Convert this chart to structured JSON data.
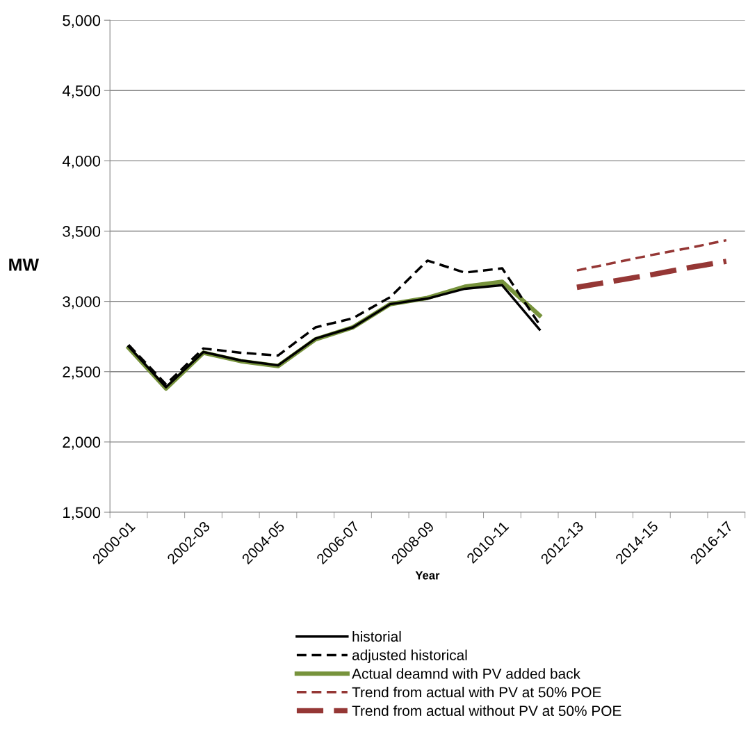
{
  "chart_data": {
    "type": "line",
    "xlabel": "Year",
    "ylabel": "MW",
    "categories": [
      "2000-01",
      null,
      "2002-03",
      null,
      "2004-05",
      null,
      "2006-07",
      null,
      "2008-09",
      null,
      "2010-11",
      null,
      "2012-13",
      null,
      "2014-15",
      null,
      "2016-17"
    ],
    "ylim": [
      1500,
      5000
    ],
    "yticks": [
      {
        "value": 1500,
        "label": "1,500"
      },
      {
        "value": 2000,
        "label": "2,000"
      },
      {
        "value": 2500,
        "label": "2,500"
      },
      {
        "value": 3000,
        "label": "3,000"
      },
      {
        "value": 3500,
        "label": "3,500"
      },
      {
        "value": 4000,
        "label": "4,000"
      },
      {
        "value": 4500,
        "label": "4,500"
      },
      {
        "value": 5000,
        "label": "5,000"
      }
    ],
    "grid": "y",
    "legend": "bottom",
    "series": [
      {
        "name": "historial",
        "color": "#000000",
        "line_style": "solid",
        "values": [
          2680,
          2390,
          2640,
          2580,
          2545,
          2735,
          2815,
          2980,
          3020,
          3090,
          3115,
          2800,
          null,
          null,
          null,
          null,
          null
        ]
      },
      {
        "name": "adjusted historical",
        "color": "#000000",
        "line_style": "dashed",
        "values": [
          2690,
          2410,
          2665,
          2635,
          2615,
          2815,
          2880,
          3030,
          3290,
          3205,
          3235,
          2835,
          null,
          null,
          null,
          null,
          null
        ]
      },
      {
        "name": "Actual deamnd with PV added back",
        "color": "#77933c",
        "line_style": "solid",
        "values": [
          2670,
          2380,
          2635,
          2575,
          2540,
          2730,
          2815,
          2980,
          3025,
          3105,
          3140,
          2900,
          null,
          null,
          null,
          null,
          null
        ]
      },
      {
        "name": "Trend from actual with PV at 50% POE",
        "color": "#953735",
        "line_style": "dashed",
        "values": [
          null,
          null,
          null,
          null,
          null,
          null,
          null,
          null,
          null,
          null,
          null,
          null,
          3220,
          3275,
          3330,
          3380,
          3435
        ]
      },
      {
        "name": "Trend from actual without PV at 50% POE",
        "color": "#953735",
        "line_style": "longdash",
        "values": [
          null,
          null,
          null,
          null,
          null,
          null,
          null,
          null,
          null,
          null,
          null,
          null,
          3100,
          3145,
          3190,
          3240,
          3285
        ]
      }
    ]
  }
}
